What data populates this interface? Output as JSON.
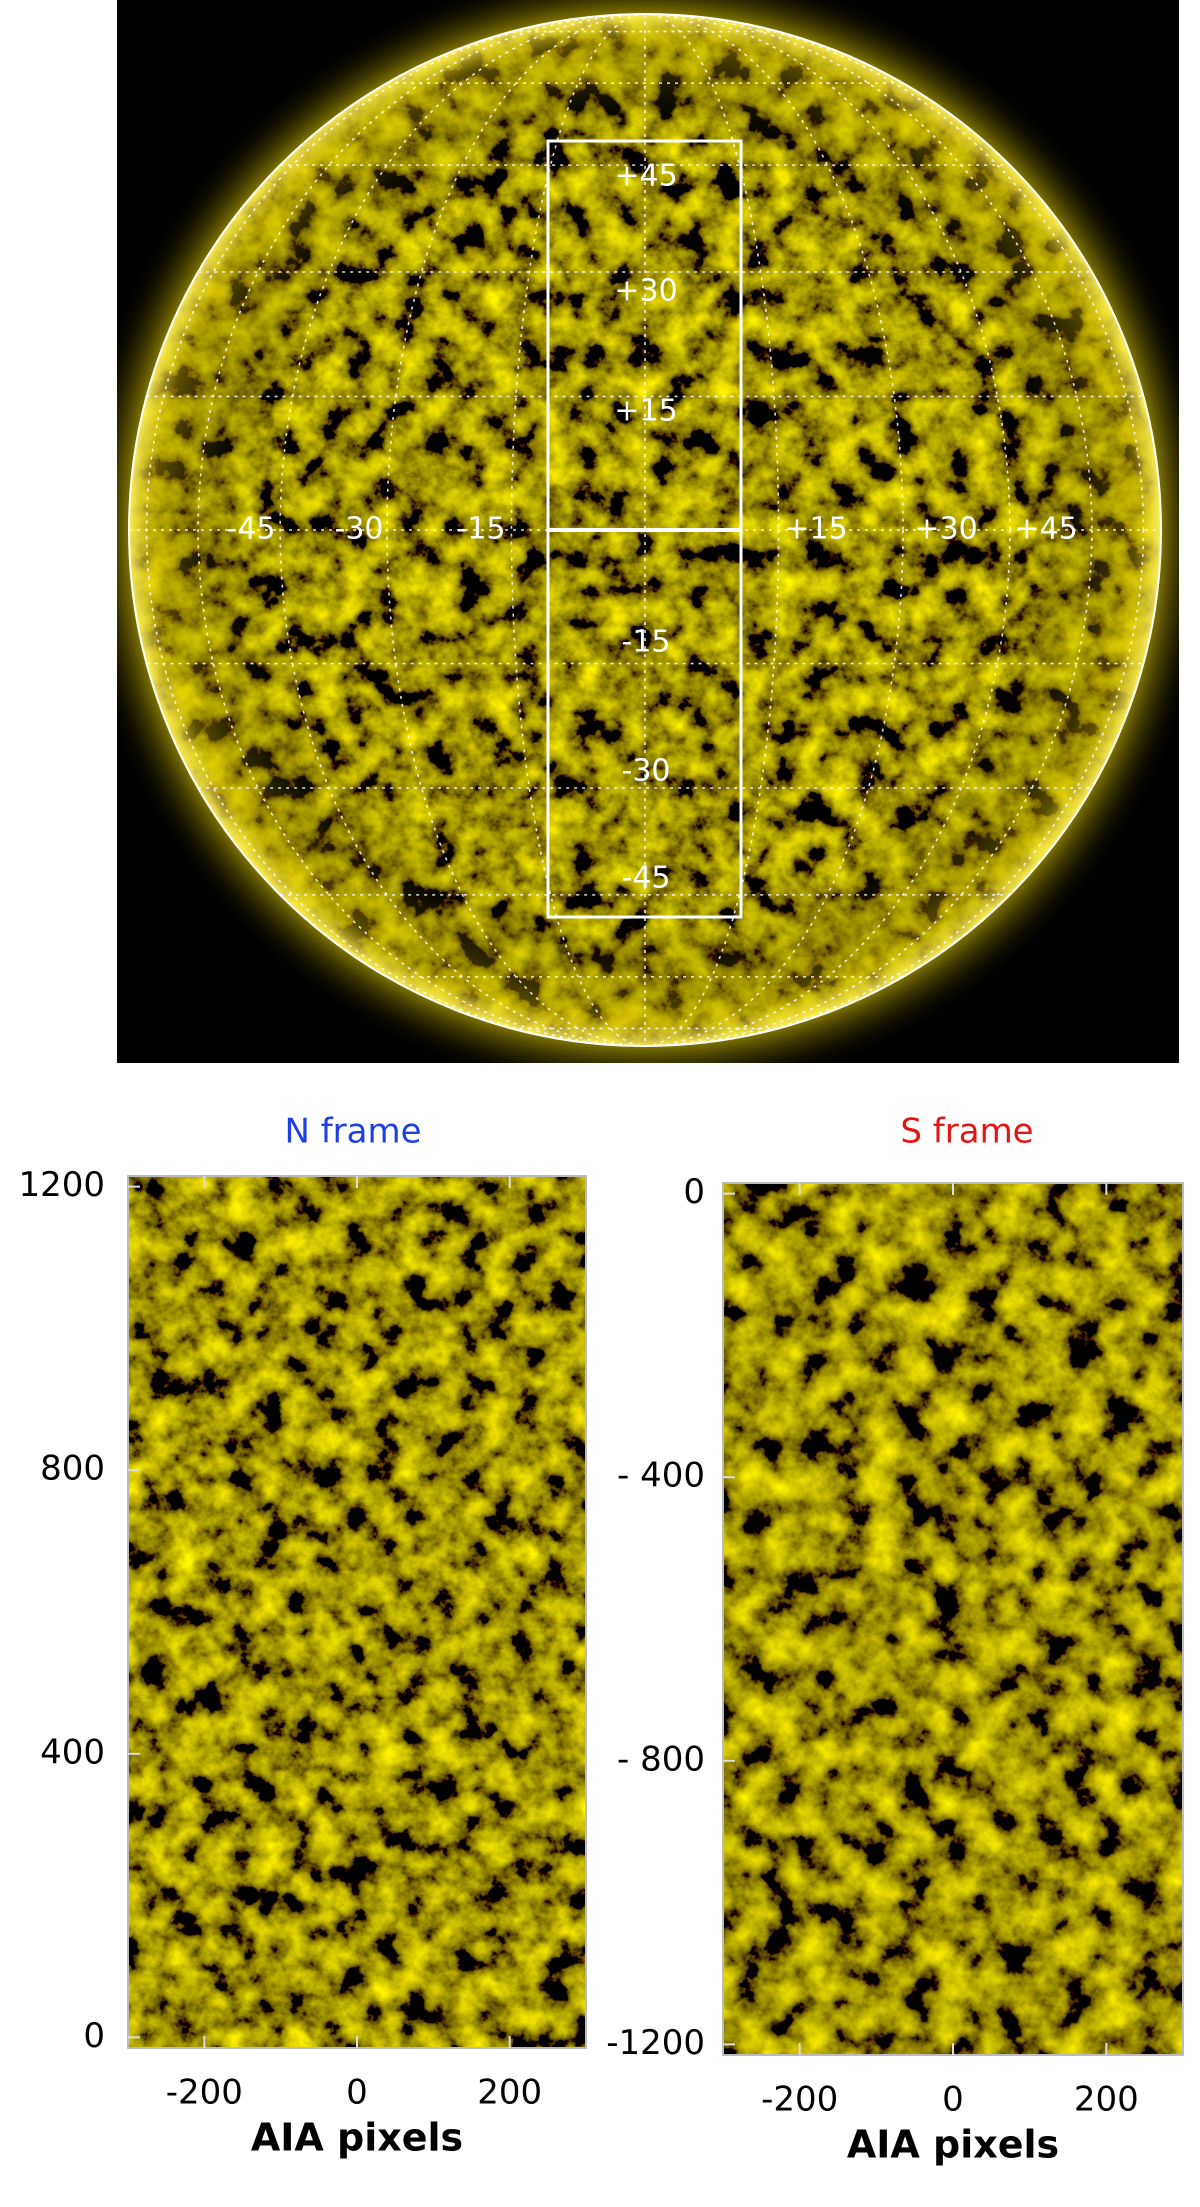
{
  "sun_image": {
    "latitude_labels": [
      "+45",
      "+30",
      "+15",
      "-15",
      "-30",
      "-45"
    ],
    "longitude_labels": [
      "-45",
      "-30",
      "-15",
      "+15",
      "+30",
      "+45"
    ]
  },
  "panels": [
    {
      "title": "N frame",
      "title_color": "#1f3fe6",
      "xlabel": "AIA pixels",
      "xlim": [
        -300,
        300
      ],
      "xticks": [
        -200,
        0,
        200
      ],
      "ylim": [
        -15,
        1215
      ],
      "yticks": [
        0,
        400,
        800,
        1200
      ]
    },
    {
      "title": "S frame",
      "title_color": "#e61414",
      "xlabel": "AIA pixels",
      "xlim": [
        -300,
        300
      ],
      "xticks": [
        -200,
        0,
        200
      ],
      "ylim": [
        -1215,
        15
      ],
      "yticks": [
        -1200,
        {
          "value": -800,
          "label": "- 800"
        },
        {
          "value": -400,
          "label": "- 400"
        },
        0
      ]
    }
  ]
}
